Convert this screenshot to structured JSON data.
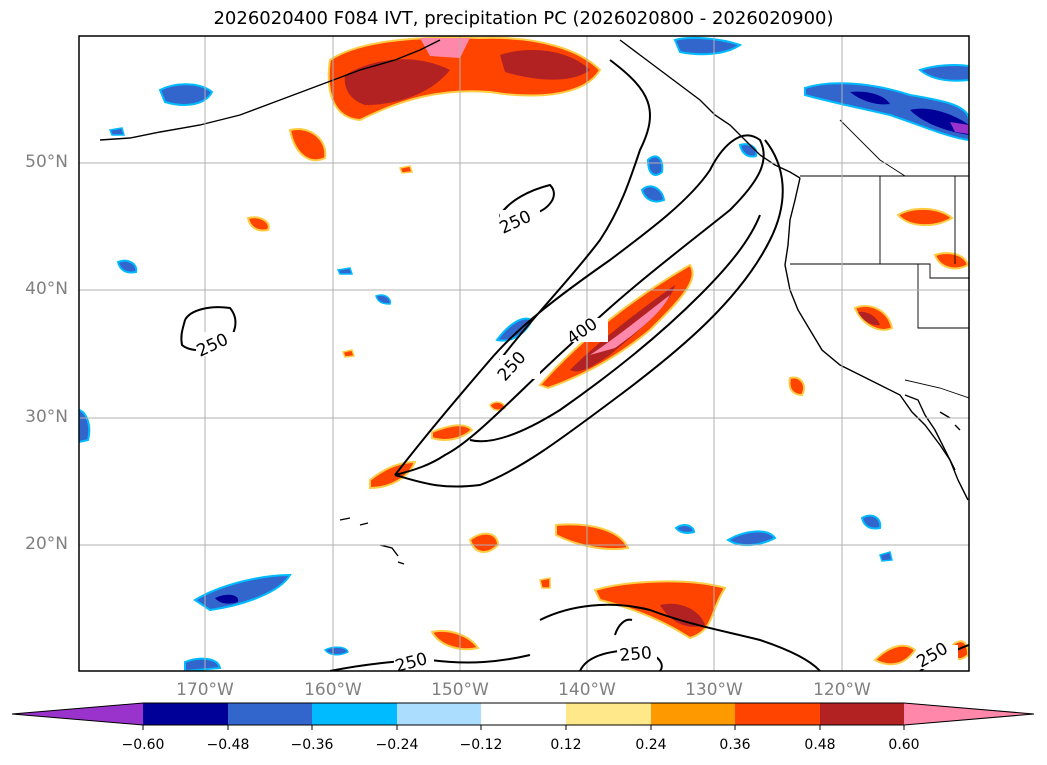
{
  "title": "2026020400 F084 IVT, precipitation PC (2026020800 - 2026020900)",
  "lat_labels": [
    "50°N",
    "40°N",
    "30°N",
    "20°N"
  ],
  "lon_labels": [
    "170°W",
    "160°W",
    "150°W",
    "140°W",
    "130°W",
    "120°W"
  ],
  "contour_labels": [
    "250",
    "250",
    "250",
    "400",
    "250",
    "250",
    "250"
  ],
  "colorbar": {
    "ticks": [
      "−0.60",
      "−0.48",
      "−0.36",
      "−0.24",
      "−0.12",
      "0.12",
      "0.24",
      "0.36",
      "0.48",
      "0.60"
    ],
    "colors": [
      "#9933cc",
      "#000099",
      "#3366cc",
      "#00bbff",
      "#aaddff",
      "#ffffff",
      "#ffe88a",
      "#ff9900",
      "#ff4400",
      "#b22222",
      "#ff88aa"
    ]
  }
}
